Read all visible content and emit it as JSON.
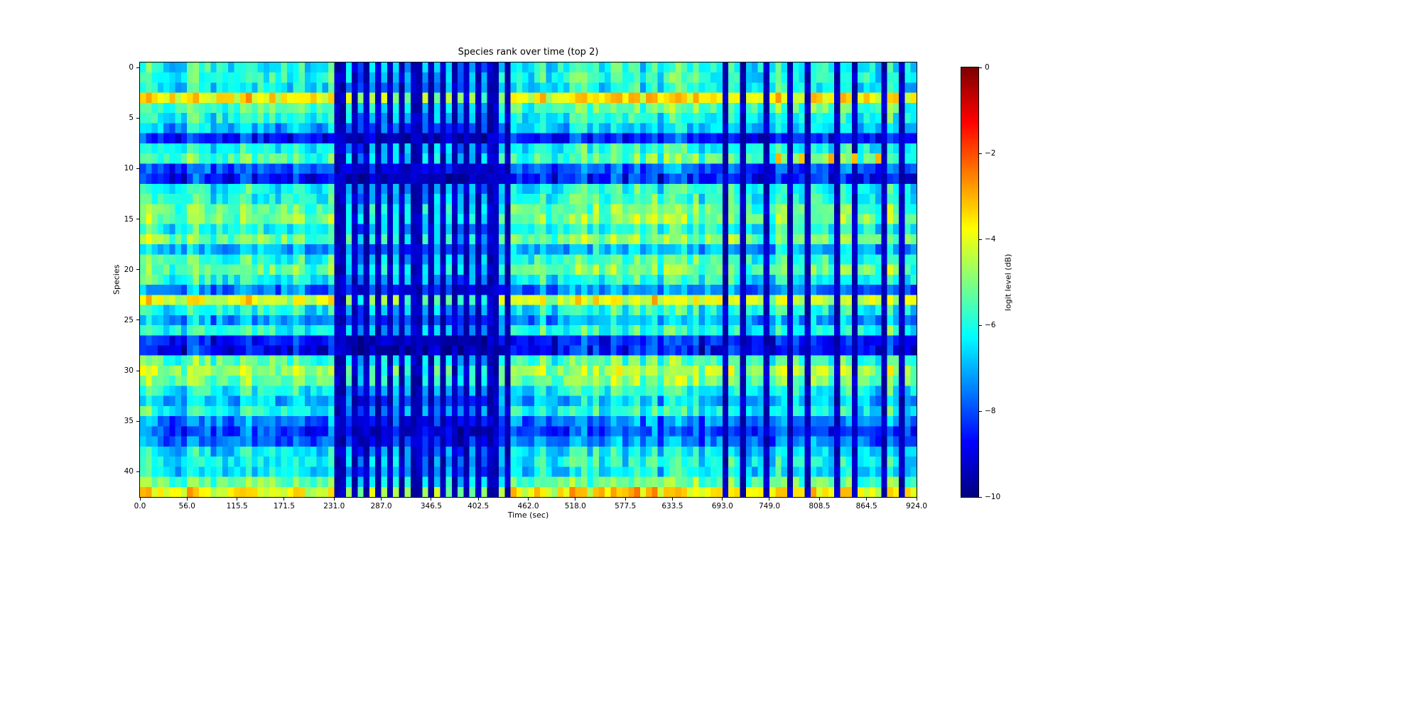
{
  "chart_data": {
    "type": "heatmap",
    "title": "Species rank over time (top 2)",
    "xlabel": "Time (sec)",
    "ylabel": "Species",
    "x_tick_labels": [
      "0.0",
      "56.0",
      "115.5",
      "171.5",
      "231.0",
      "287.0",
      "346.5",
      "402.5",
      "462.0",
      "518.0",
      "577.5",
      "633.5",
      "693.0",
      "749.0",
      "808.5",
      "864.5",
      "924.0"
    ],
    "x_tick_times": [
      0,
      56,
      115.5,
      171.5,
      231,
      287,
      346.5,
      402.5,
      462,
      518,
      577.5,
      633.5,
      693,
      749,
      808.5,
      864.5,
      924
    ],
    "y_tick_labels": [
      "0",
      "5",
      "10",
      "15",
      "20",
      "25",
      "30",
      "35",
      "40"
    ],
    "y_tick_rows": [
      0,
      5,
      10,
      15,
      20,
      25,
      30,
      35,
      40
    ],
    "n_species": 43,
    "n_time_bins": 132,
    "time_range_sec": [
      0,
      924
    ],
    "value_range_db": [
      -10,
      0
    ],
    "colormap": "jet",
    "colorbar": {
      "label": "logit level (dB)",
      "tick_labels": [
        "0",
        "−2",
        "−4",
        "−6",
        "−8",
        "−10"
      ],
      "tick_values": [
        0,
        -2,
        -4,
        -6,
        -8,
        -10
      ]
    },
    "species_mean_db": [
      -6.0,
      -5.8,
      -6.2,
      -3.6,
      -5.4,
      -6.0,
      -6.8,
      -8.4,
      -6.0,
      -5.4,
      -7.8,
      -8.4,
      -6.0,
      -5.8,
      -5.2,
      -5.0,
      -6.0,
      -5.0,
      -6.8,
      -5.6,
      -5.2,
      -6.0,
      -7.4,
      -4.0,
      -6.0,
      -7.0,
      -5.8,
      -8.4,
      -8.6,
      -5.4,
      -4.6,
      -5.0,
      -6.0,
      -6.8,
      -6.0,
      -7.4,
      -8.0,
      -7.4,
      -6.4,
      -6.0,
      -6.4,
      -5.2,
      -3.6
    ],
    "dark_interval": {
      "t0": 228,
      "t1": 440,
      "offset_db": -1.3
    },
    "dark_stripe_times_sec": [
      231,
      244,
      257,
      270,
      283,
      296,
      309,
      322,
      335,
      348,
      361,
      374,
      387,
      400,
      413,
      426,
      439,
      696,
      719,
      746,
      770,
      797,
      831,
      852,
      882,
      905
    ],
    "stripe_db": -9.4,
    "hot_cells": [
      {
        "species": 3,
        "t": 38,
        "db": -3.1
      },
      {
        "species": 3,
        "t": 108,
        "db": -3.3
      },
      {
        "species": 3,
        "t": 158,
        "db": -3.0
      },
      {
        "species": 3,
        "t": 204,
        "db": -3.2
      },
      {
        "species": 3,
        "t": 520,
        "db": -3.1
      },
      {
        "species": 3,
        "t": 556,
        "db": -3.3
      },
      {
        "species": 3,
        "t": 592,
        "db": -3.0
      },
      {
        "species": 3,
        "t": 648,
        "db": -3.2
      },
      {
        "species": 3,
        "t": 845,
        "db": -3.3
      },
      {
        "species": 3,
        "t": 898,
        "db": -3.1
      },
      {
        "species": 9,
        "t": 758,
        "db": -3.0
      },
      {
        "species": 9,
        "t": 790,
        "db": -3.2
      },
      {
        "species": 9,
        "t": 822,
        "db": -2.9
      },
      {
        "species": 9,
        "t": 850,
        "db": -3.1
      },
      {
        "species": 9,
        "t": 878,
        "db": -3.0
      },
      {
        "species": 42,
        "t": 475,
        "db": -3.0
      },
      {
        "species": 42,
        "t": 503,
        "db": -3.3
      },
      {
        "species": 42,
        "t": 528,
        "db": -3.1
      },
      {
        "species": 42,
        "t": 552,
        "db": -2.9
      },
      {
        "species": 42,
        "t": 578,
        "db": -3.2
      },
      {
        "species": 42,
        "t": 604,
        "db": -3.0
      },
      {
        "species": 42,
        "t": 630,
        "db": -3.2
      }
    ],
    "noise": {
      "column_db": 1.4,
      "cell_db": 1.4
    }
  }
}
